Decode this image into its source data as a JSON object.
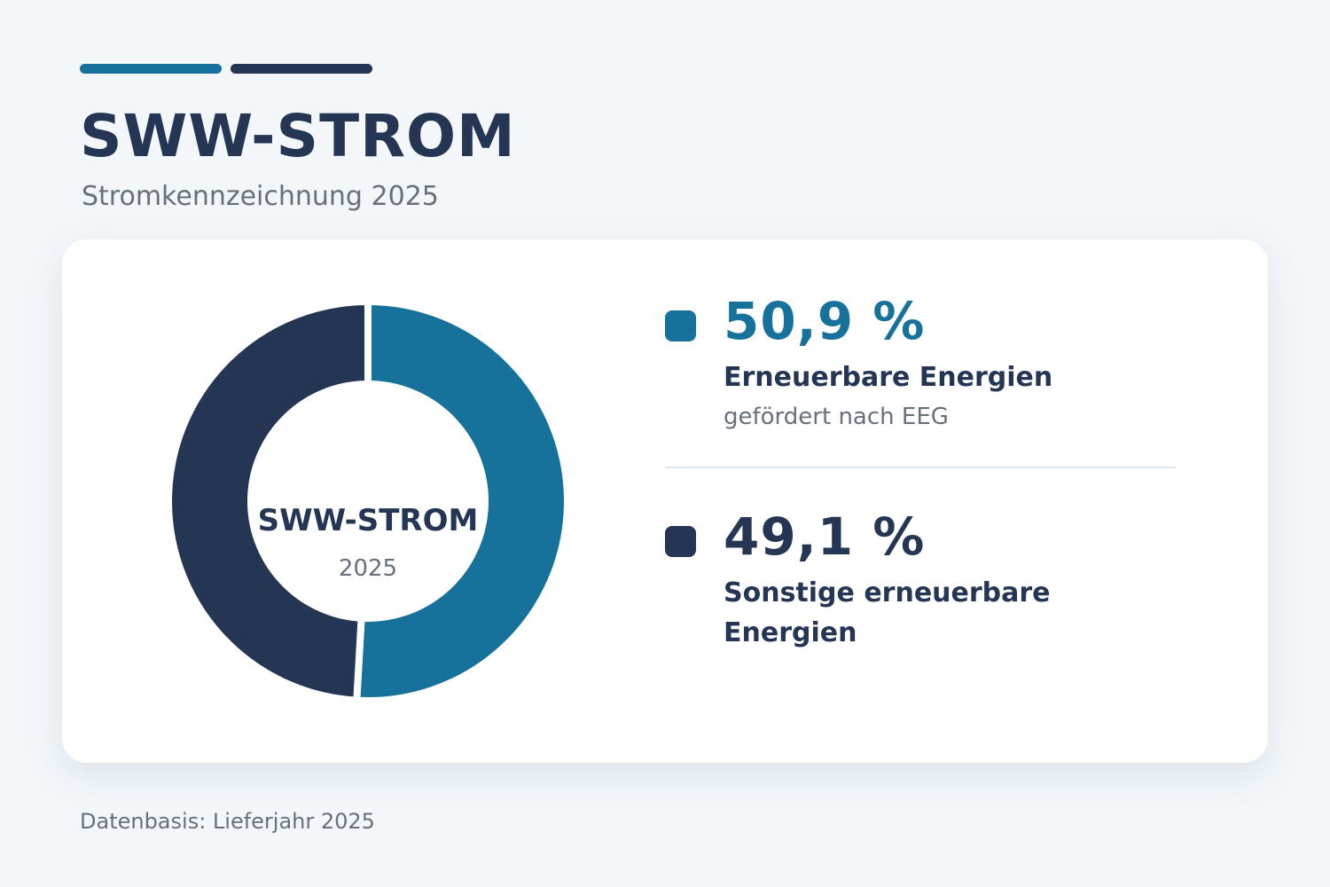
{
  "colors": {
    "renewable": "#16729b",
    "other": "#243654",
    "text_dark": "#243654",
    "text_muted": "#67707c",
    "background": "#f3f7fa",
    "card": "#ffffff"
  },
  "header": {
    "title": "SWW-STROM",
    "subtitle": "Stromkennzeichnung 2025"
  },
  "donut_center": {
    "title": "SWW-STROM",
    "year": "2025"
  },
  "chart_data": {
    "type": "pie",
    "style": "donut",
    "start_angle_deg": 0,
    "direction": "clockwise",
    "series": [
      {
        "name": "Erneuerbare Energien",
        "value": 50.9,
        "value_label": "50,9 %",
        "note": "gefördert nach EEG",
        "color": "#16729b"
      },
      {
        "name": "Sonstige erneuerbare Energien",
        "value": 49.1,
        "value_label": "49,1 %",
        "color": "#243654"
      }
    ]
  },
  "footer": {
    "note": "Datenbasis: Lieferjahr 2025"
  }
}
